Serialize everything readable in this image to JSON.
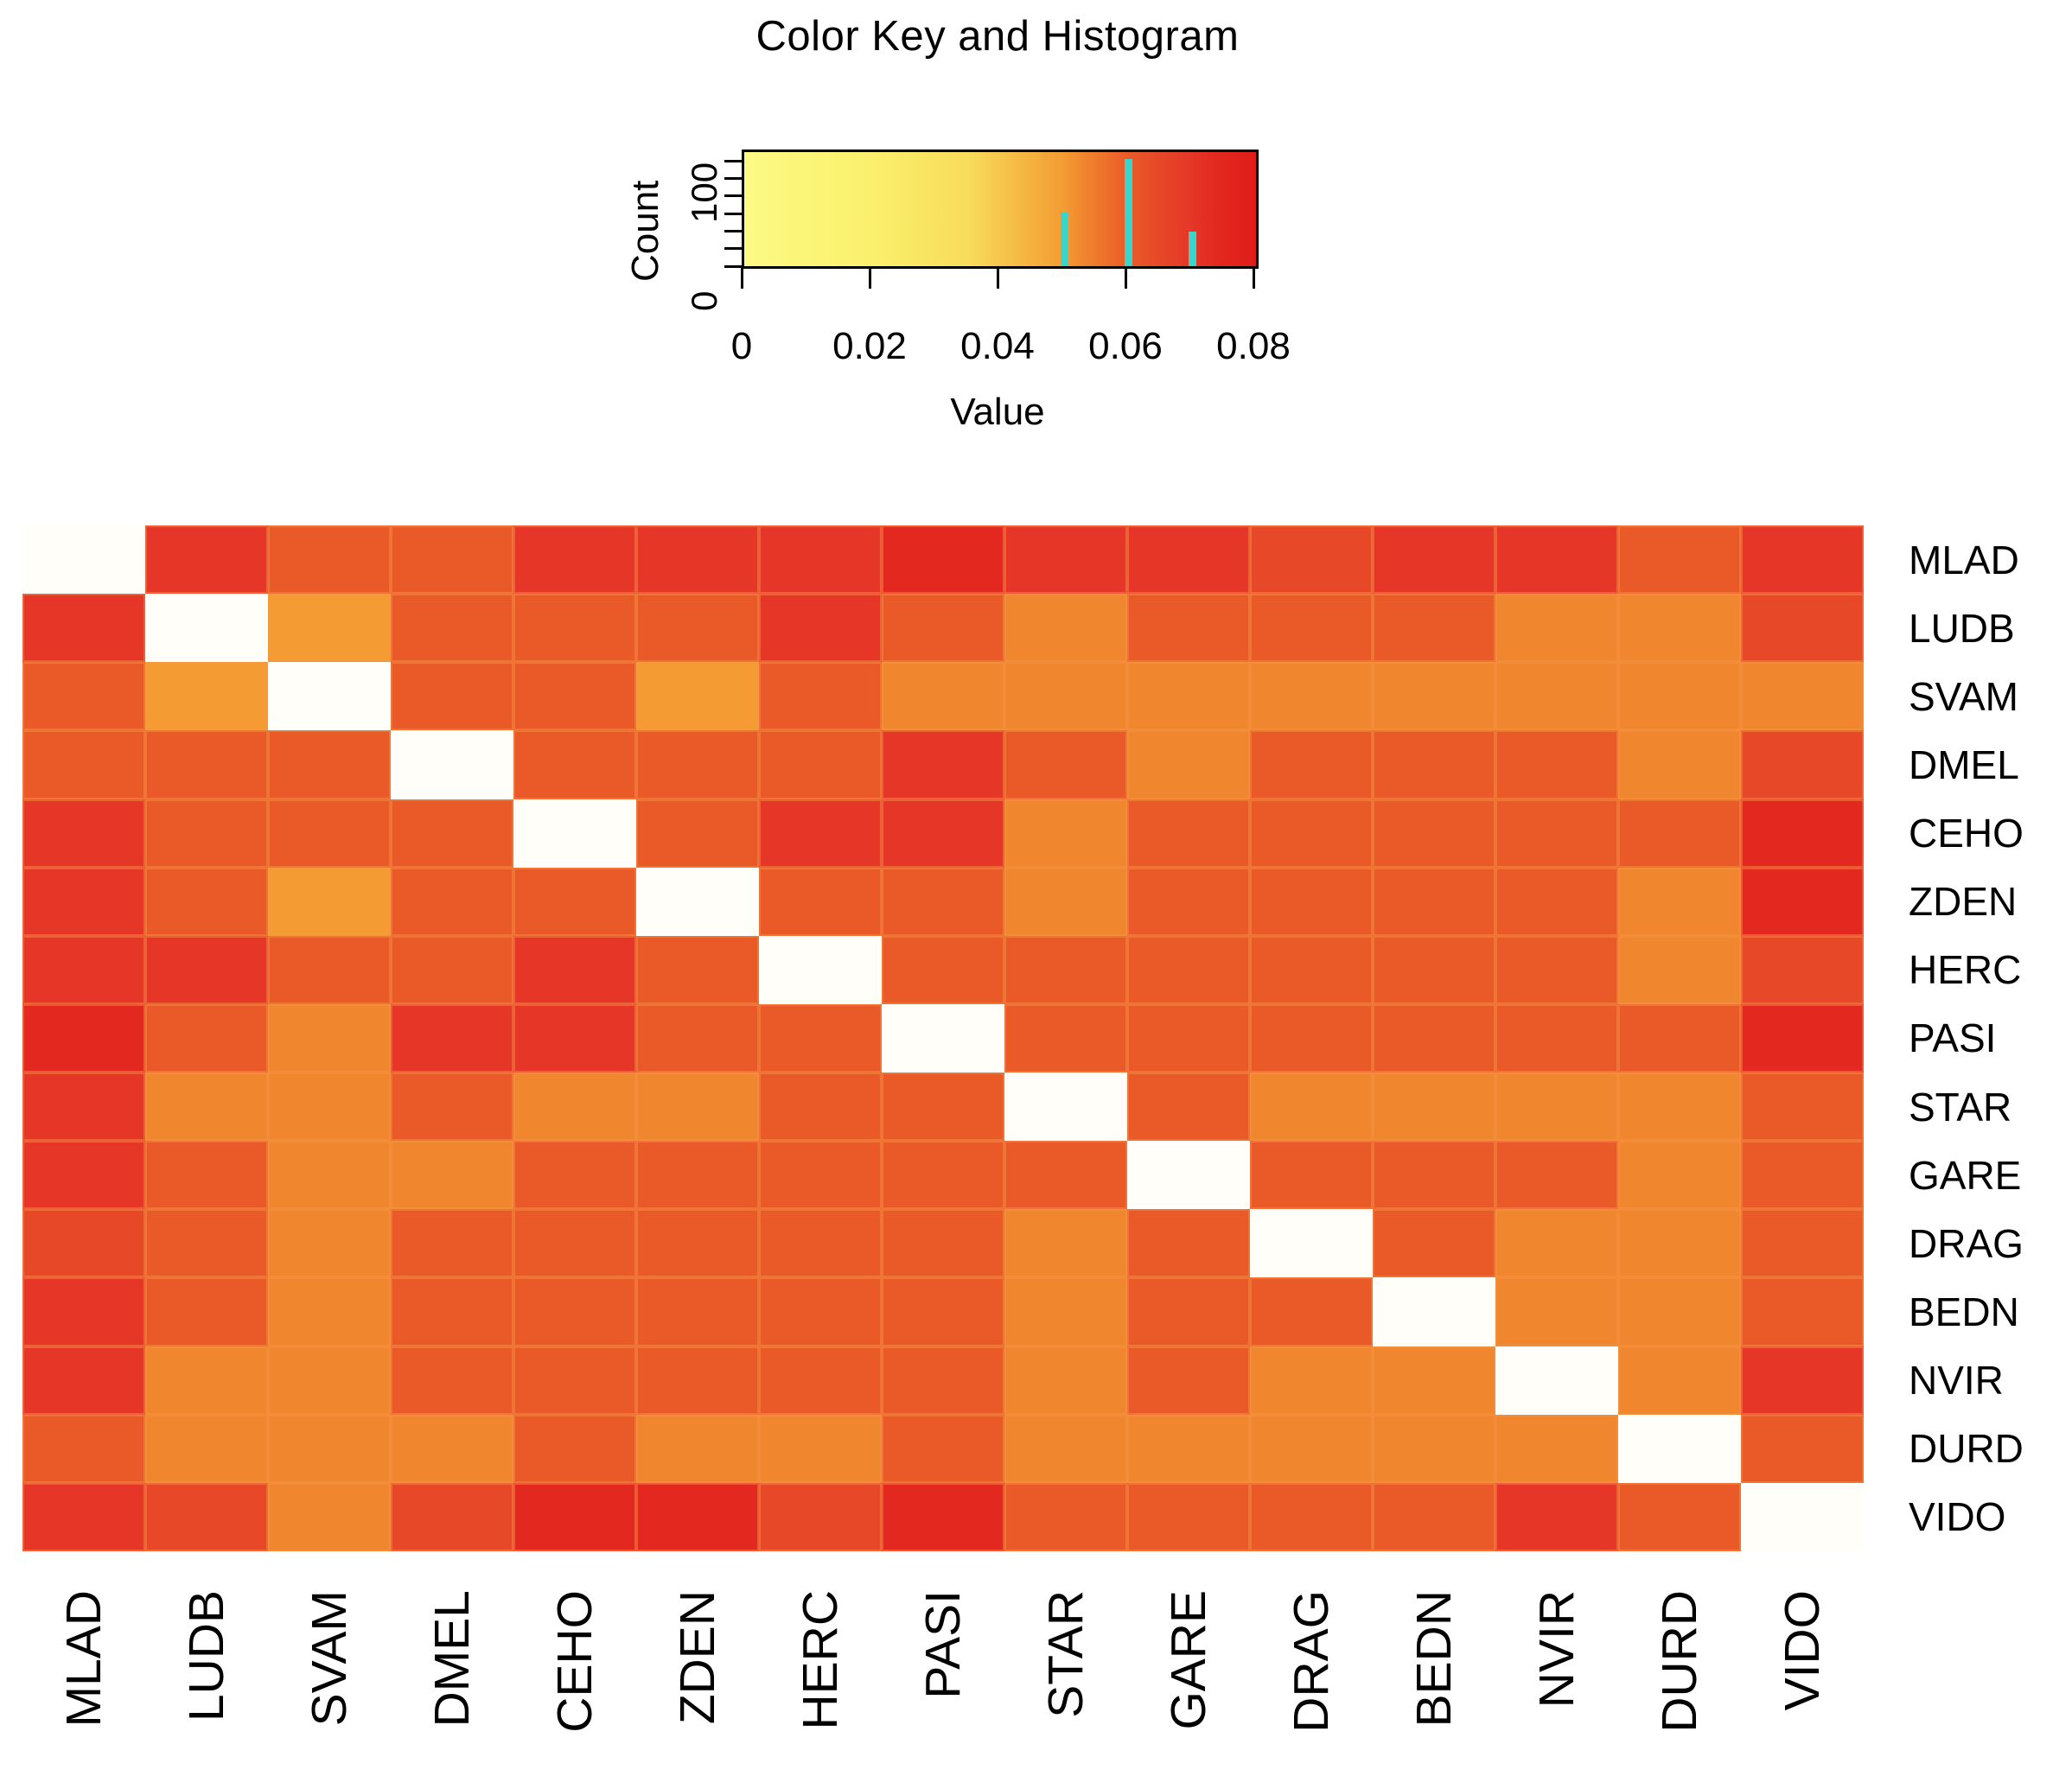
{
  "figure": {
    "background": "#FFFFFF",
    "na_color": "#FFFEF8",
    "cell_border_color": "rgba(247,150,70,0.45)"
  },
  "colormap": {
    "comment": "value->color stops, linear interpolation, range 0 to 0.08",
    "stops": [
      [
        0.0,
        "#FCFA84"
      ],
      [
        0.02,
        "#FAF06B"
      ],
      [
        0.035,
        "#F8DC5B"
      ],
      [
        0.045,
        "#F5B13E"
      ],
      [
        0.05,
        "#F49B33"
      ],
      [
        0.053,
        "#F0862E"
      ],
      [
        0.06,
        "#EA5A28"
      ],
      [
        0.065,
        "#E74828"
      ],
      [
        0.07,
        "#E53628"
      ],
      [
        0.074,
        "#E3281F"
      ],
      [
        0.08,
        "#E01C19"
      ]
    ]
  },
  "chart_data": [
    {
      "type": "heatmap",
      "labels": [
        "MLAD",
        "LUDB",
        "SVAM",
        "DMEL",
        "CEHO",
        "ZDEN",
        "HERC",
        "PASI",
        "STAR",
        "GARE",
        "DRAG",
        "BEDN",
        "NVIR",
        "DURD",
        "VIDO"
      ],
      "row_labels_side": "right",
      "col_labels_side": "bottom",
      "value_range": [
        0,
        0.08
      ],
      "diagonal_is_na": true,
      "matrix": [
        [
          null,
          0.07,
          0.06,
          0.06,
          0.07,
          0.07,
          0.07,
          0.074,
          0.07,
          0.07,
          0.065,
          0.07,
          0.07,
          0.06,
          0.07
        ],
        [
          0.07,
          null,
          0.05,
          0.06,
          0.06,
          0.06,
          0.07,
          0.06,
          0.053,
          0.06,
          0.06,
          0.06,
          0.053,
          0.053,
          0.065
        ],
        [
          0.06,
          0.05,
          null,
          0.06,
          0.06,
          0.05,
          0.06,
          0.053,
          0.053,
          0.053,
          0.053,
          0.053,
          0.053,
          0.053,
          0.053
        ],
        [
          0.06,
          0.06,
          0.06,
          null,
          0.06,
          0.06,
          0.06,
          0.07,
          0.06,
          0.053,
          0.06,
          0.06,
          0.06,
          0.053,
          0.065
        ],
        [
          0.07,
          0.06,
          0.06,
          0.06,
          null,
          0.06,
          0.07,
          0.07,
          0.053,
          0.06,
          0.06,
          0.06,
          0.06,
          0.06,
          0.074
        ],
        [
          0.07,
          0.06,
          0.05,
          0.06,
          0.06,
          null,
          0.06,
          0.06,
          0.053,
          0.06,
          0.06,
          0.06,
          0.06,
          0.053,
          0.074
        ],
        [
          0.07,
          0.07,
          0.06,
          0.06,
          0.07,
          0.06,
          null,
          0.06,
          0.06,
          0.06,
          0.06,
          0.06,
          0.06,
          0.053,
          0.065
        ],
        [
          0.074,
          0.06,
          0.053,
          0.07,
          0.07,
          0.06,
          0.06,
          null,
          0.06,
          0.06,
          0.06,
          0.06,
          0.06,
          0.06,
          0.074
        ],
        [
          0.07,
          0.053,
          0.053,
          0.06,
          0.053,
          0.053,
          0.06,
          0.06,
          null,
          0.06,
          0.053,
          0.053,
          0.053,
          0.053,
          0.06
        ],
        [
          0.07,
          0.06,
          0.053,
          0.053,
          0.06,
          0.06,
          0.06,
          0.06,
          0.06,
          null,
          0.06,
          0.06,
          0.06,
          0.053,
          0.06
        ],
        [
          0.065,
          0.06,
          0.053,
          0.06,
          0.06,
          0.06,
          0.06,
          0.06,
          0.053,
          0.06,
          null,
          0.06,
          0.053,
          0.053,
          0.06
        ],
        [
          0.07,
          0.06,
          0.053,
          0.06,
          0.06,
          0.06,
          0.06,
          0.06,
          0.053,
          0.06,
          0.06,
          null,
          0.053,
          0.053,
          0.06
        ],
        [
          0.07,
          0.053,
          0.053,
          0.06,
          0.06,
          0.06,
          0.06,
          0.06,
          0.053,
          0.06,
          0.053,
          0.053,
          null,
          0.053,
          0.07
        ],
        [
          0.06,
          0.053,
          0.053,
          0.053,
          0.06,
          0.053,
          0.053,
          0.06,
          0.053,
          0.053,
          0.053,
          0.053,
          0.053,
          null,
          0.06
        ],
        [
          0.07,
          0.065,
          0.053,
          0.065,
          0.074,
          0.074,
          0.065,
          0.074,
          0.06,
          0.06,
          0.06,
          0.06,
          0.07,
          0.06,
          null
        ]
      ]
    },
    {
      "type": "bar",
      "title": "Color Key and Histogram",
      "xlabel": "Value",
      "ylabel": "Count",
      "x": [
        0.05,
        0.06,
        0.07
      ],
      "counts": [
        61,
        122,
        39
      ],
      "bar_color": "#3BD4C9",
      "x_tick_labels": [
        "0",
        "0.02",
        "0.04",
        "0.06",
        "0.08"
      ],
      "x_tick_values": [
        0,
        0.02,
        0.04,
        0.06,
        0.08
      ],
      "y_tick_labels": [
        "0",
        "100"
      ],
      "y_tick_values": [
        0,
        100
      ],
      "y_minor_tick_values": [
        0,
        20,
        40,
        60,
        80,
        100,
        120
      ],
      "xlim": [
        0,
        0.08
      ],
      "ylim": [
        0,
        130
      ],
      "legend": "none",
      "grid": false
    }
  ]
}
